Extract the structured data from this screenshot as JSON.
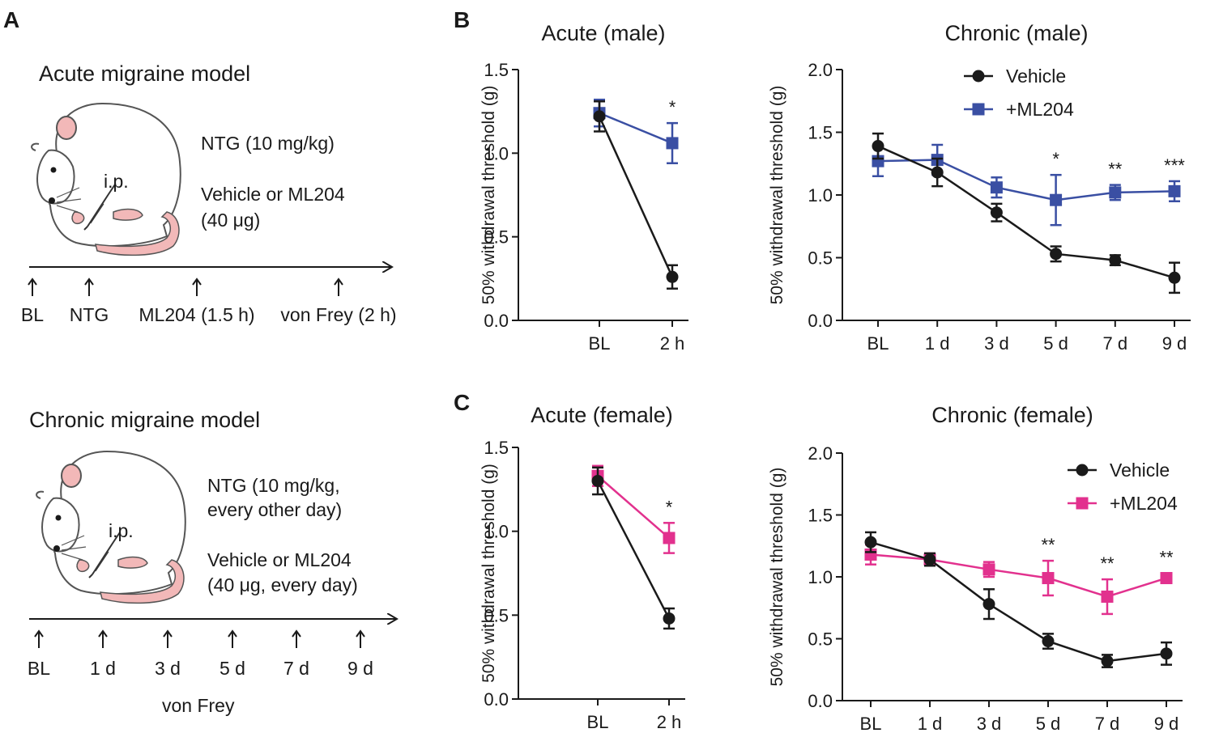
{
  "panels": {
    "A": "A",
    "B": "B",
    "C": "C"
  },
  "acute_model": {
    "title": "Acute migraine model",
    "injection": "i.p.",
    "dose_line_1": "NTG (10 mg/kg)",
    "dose_line_2": "Vehicle or ML204",
    "dose_line_3": "(40 μg)",
    "timeline": [
      "BL",
      "NTG",
      "ML204 (1.5 h)",
      "von Frey (2 h)"
    ]
  },
  "chronic_model": {
    "title": "Chronic migraine model",
    "injection": "i.p.",
    "dose_line_1": "NTG (10 mg/kg,",
    "dose_line_2": "every other day)",
    "dose_line_3": "Vehicle or ML204",
    "dose_line_4": "(40 μg, every day)",
    "timeline": [
      "BL",
      "1 d",
      "3 d",
      "5 d",
      "7 d",
      "9 d"
    ],
    "footer": "von Frey"
  },
  "colors": {
    "vehicle": "#1a1a1a",
    "ml204_male": "#3a4fa3",
    "ml204_female": "#e2318e",
    "mouse_pink": "#f2b8b8"
  },
  "chart_data": [
    {
      "id": "acute_male",
      "type": "line",
      "title": "Acute (male)",
      "ylabel": "50% withdrawal threshold (g)",
      "categories": [
        "BL",
        "2 h"
      ],
      "ylim": [
        0,
        1.5
      ],
      "yticks": [
        "0.0",
        "0.5",
        "1.0",
        "1.5"
      ],
      "series": [
        {
          "name": "Vehicle",
          "color": "#1a1a1a",
          "marker": "circle",
          "values": [
            1.22,
            0.26
          ],
          "errors": [
            0.09,
            0.07
          ]
        },
        {
          "name": "+ML204",
          "color": "#3a4fa3",
          "marker": "square",
          "values": [
            1.24,
            1.06
          ],
          "errors": [
            0.08,
            0.12
          ]
        }
      ],
      "annotations": [
        {
          "index": 1,
          "label": "*"
        }
      ]
    },
    {
      "id": "chronic_male",
      "type": "line",
      "title": "Chronic (male)",
      "ylabel": "50% withdrawal threshold (g)",
      "categories": [
        "BL",
        "1 d",
        "3 d",
        "5 d",
        "7 d",
        "9 d"
      ],
      "ylim": [
        0,
        2.0
      ],
      "yticks": [
        "0.0",
        "0.5",
        "1.0",
        "1.5",
        "2.0"
      ],
      "legend": [
        "Vehicle",
        "+ML204"
      ],
      "series": [
        {
          "name": "Vehicle",
          "color": "#1a1a1a",
          "marker": "circle",
          "values": [
            1.39,
            1.18,
            0.86,
            0.53,
            0.48,
            0.34
          ],
          "errors": [
            0.1,
            0.11,
            0.07,
            0.06,
            0.04,
            0.12
          ]
        },
        {
          "name": "+ML204",
          "color": "#3a4fa3",
          "marker": "square",
          "values": [
            1.27,
            1.28,
            1.06,
            0.96,
            1.02,
            1.03
          ],
          "errors": [
            0.12,
            0.12,
            0.08,
            0.2,
            0.06,
            0.08
          ]
        }
      ],
      "annotations": [
        {
          "index": 3,
          "label": "*"
        },
        {
          "index": 4,
          "label": "**"
        },
        {
          "index": 5,
          "label": "***"
        }
      ]
    },
    {
      "id": "acute_female",
      "type": "line",
      "title": "Acute (female)",
      "ylabel": "50% withdrawal threshold (g)",
      "categories": [
        "BL",
        "2 h"
      ],
      "ylim": [
        0,
        1.5
      ],
      "yticks": [
        "0.0",
        "0.5",
        "1.0",
        "1.5"
      ],
      "series": [
        {
          "name": "Vehicle",
          "color": "#1a1a1a",
          "marker": "circle",
          "values": [
            1.3,
            0.48
          ],
          "errors": [
            0.08,
            0.06
          ]
        },
        {
          "name": "+ML204",
          "color": "#e2318e",
          "marker": "square",
          "values": [
            1.33,
            0.96
          ],
          "errors": [
            0.06,
            0.09
          ]
        }
      ],
      "annotations": [
        {
          "index": 1,
          "label": "*"
        }
      ]
    },
    {
      "id": "chronic_female",
      "type": "line",
      "title": "Chronic (female)",
      "ylabel": "50% withdrawal threshold (g)",
      "categories": [
        "BL",
        "1 d",
        "3 d",
        "5 d",
        "7 d",
        "9 d"
      ],
      "ylim": [
        0,
        2.0
      ],
      "yticks": [
        "0.0",
        "0.5",
        "1.0",
        "1.5",
        "2.0"
      ],
      "legend": [
        "Vehicle",
        "+ML204"
      ],
      "series": [
        {
          "name": "Vehicle",
          "color": "#1a1a1a",
          "marker": "circle",
          "values": [
            1.28,
            1.14,
            0.78,
            0.48,
            0.32,
            0.38
          ],
          "errors": [
            0.08,
            0.05,
            0.12,
            0.06,
            0.05,
            0.09
          ]
        },
        {
          "name": "+ML204",
          "color": "#e2318e",
          "marker": "square",
          "values": [
            1.18,
            1.14,
            1.06,
            0.99,
            0.84,
            0.99
          ],
          "errors": [
            0.08,
            0.05,
            0.06,
            0.14,
            0.14,
            0.04
          ]
        }
      ],
      "annotations": [
        {
          "index": 3,
          "label": "**"
        },
        {
          "index": 4,
          "label": "**"
        },
        {
          "index": 5,
          "label": "**"
        }
      ]
    }
  ]
}
